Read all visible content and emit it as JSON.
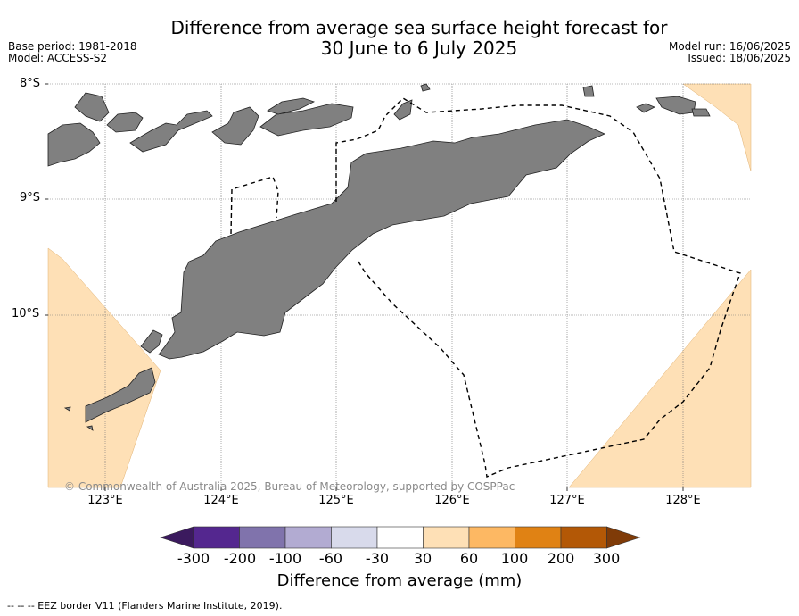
{
  "title_line1": "Difference from average sea surface height forecast for",
  "title_line2": "30 June to 6 July 2025",
  "base_period": "Base period: 1981-2018",
  "model": "Model: ACCESS-S2",
  "model_run": "Model run: 16/06/2025",
  "issued": "Issued: 18/06/2025",
  "lat_labels": [
    "8°S",
    "9°S",
    "10°S"
  ],
  "lon_labels": [
    "123°E",
    "124°E",
    "125°E",
    "126°E",
    "127°E",
    "128°E"
  ],
  "copyright": "© Commonwealth of Australia 2025, Bureau of Meteorology, supported by COSPPac",
  "colorbar": {
    "ticks": [
      "-300",
      "-200",
      "-100",
      "-60",
      "-30",
      "30",
      "60",
      "100",
      "200",
      "300"
    ],
    "colors": [
      "#3b1a5e",
      "#54278f",
      "#8073ac",
      "#b2abd2",
      "#d8daeb",
      "#ffffff",
      "#fee0b6",
      "#fdb863",
      "#e08214",
      "#b35806",
      "#7f3b08"
    ],
    "title": "Difference from average (mm)"
  },
  "footnote": "--  --  -- EEZ border V11 (Flanders Marine Institute, 2019).",
  "colors": {
    "land": "#808080",
    "positive_anomaly": "#fee0b6"
  }
}
